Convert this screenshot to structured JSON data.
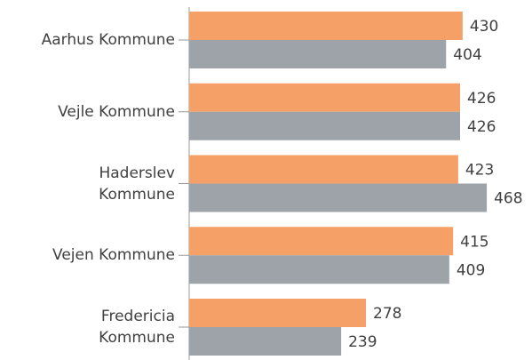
{
  "chart_data": {
    "type": "bar",
    "orientation": "horizontal",
    "categories": [
      "Aarhus Kommune",
      "Vejle Kommune",
      "Haderslev\nKommune",
      "Vejen Kommune",
      "Fredericia\nKommune"
    ],
    "series": [
      {
        "color": "#f4a066",
        "values": [
          430,
          426,
          423,
          415,
          278
        ]
      },
      {
        "color": "#9ea3aa",
        "values": [
          404,
          426,
          468,
          409,
          239
        ]
      }
    ]
  }
}
